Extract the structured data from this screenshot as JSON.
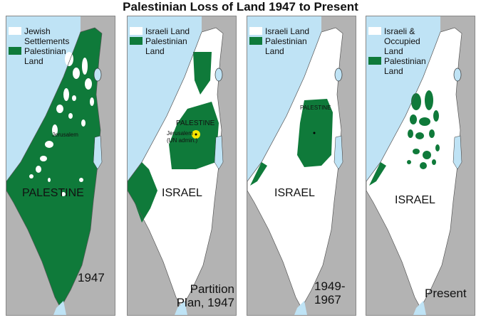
{
  "title": "Palestinian Loss of Land 1947 to Present",
  "colors": {
    "sea": "#bfe3f5",
    "neighbor": "#b3b3b3",
    "palestinian": "#0f7a3a",
    "israeli": "#ffffff",
    "jerusalem_un": "#f5e600"
  },
  "panels": [
    {
      "legend": [
        {
          "swatch": "white",
          "label": "Jewish Settlements"
        },
        {
          "swatch": "green",
          "label": "Palestinian Land"
        }
      ],
      "region_label": "PALESTINE",
      "small_label": "Jerusalem",
      "caption": "1947"
    },
    {
      "legend": [
        {
          "swatch": "white",
          "label": "Israeli Land"
        },
        {
          "swatch": "green",
          "label": "Palestinian Land"
        }
      ],
      "region_label": "ISRAEL",
      "small_label": "PALESTINE",
      "small_label2": "Jerusalem (UN admin.)",
      "caption": "Partition Plan, 1947"
    },
    {
      "legend": [
        {
          "swatch": "white",
          "label": "Israeli Land"
        },
        {
          "swatch": "green",
          "label": "Palestinian Land"
        }
      ],
      "region_label": "ISRAEL",
      "small_label": "PALESTINE",
      "caption": "1949-1967"
    },
    {
      "legend": [
        {
          "swatch": "white",
          "label": "Israeli & Occupied Land"
        },
        {
          "swatch": "green",
          "label": "Palestinian Land"
        }
      ],
      "region_label": "ISRAEL",
      "caption": "Present"
    }
  ]
}
